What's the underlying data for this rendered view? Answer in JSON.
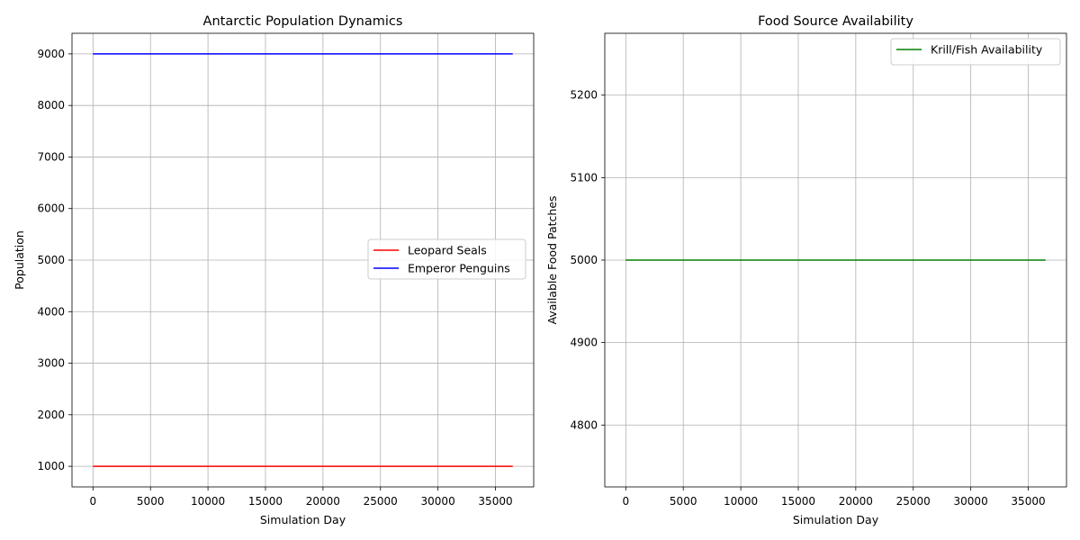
{
  "chart_data": [
    {
      "type": "line",
      "title": "Antarctic Population Dynamics",
      "xlabel": "Simulation Day",
      "ylabel": "Population",
      "xlim": [
        -1825,
        38325
      ],
      "ylim": [
        600,
        9400
      ],
      "xticks": [
        0,
        5000,
        10000,
        15000,
        20000,
        25000,
        30000,
        35000
      ],
      "xtick_labels": [
        "0",
        "5000",
        "10000",
        "15000",
        "20000",
        "25000",
        "30000",
        "35000"
      ],
      "yticks": [
        1000,
        2000,
        3000,
        4000,
        5000,
        6000,
        7000,
        8000,
        9000
      ],
      "ytick_labels": [
        "1000",
        "2000",
        "3000",
        "4000",
        "5000",
        "6000",
        "7000",
        "8000",
        "9000"
      ],
      "grid": true,
      "legend_position": "center-right",
      "series": [
        {
          "name": "Leopard Seals",
          "color": "#ff0000",
          "x": [
            0,
            36500
          ],
          "y": [
            1000,
            1000
          ]
        },
        {
          "name": "Emperor Penguins",
          "color": "#0000ff",
          "x": [
            0,
            36500
          ],
          "y": [
            9000,
            9000
          ]
        }
      ]
    },
    {
      "type": "line",
      "title": "Food Source Availability",
      "xlabel": "Simulation Day",
      "ylabel": "Available Food Patches",
      "xlim": [
        -1825,
        38325
      ],
      "ylim": [
        4725,
        5275
      ],
      "xticks": [
        0,
        5000,
        10000,
        15000,
        20000,
        25000,
        30000,
        35000
      ],
      "xtick_labels": [
        "0",
        "5000",
        "10000",
        "15000",
        "20000",
        "25000",
        "30000",
        "35000"
      ],
      "yticks": [
        4800,
        4900,
        5000,
        5100,
        5200
      ],
      "ytick_labels": [
        "4800",
        "4900",
        "5000",
        "5100",
        "5200"
      ],
      "grid": true,
      "legend_position": "top-right",
      "series": [
        {
          "name": "Krill/Fish Availability",
          "color": "#008000",
          "x": [
            0,
            36500
          ],
          "y": [
            5000,
            5000
          ]
        }
      ]
    }
  ]
}
